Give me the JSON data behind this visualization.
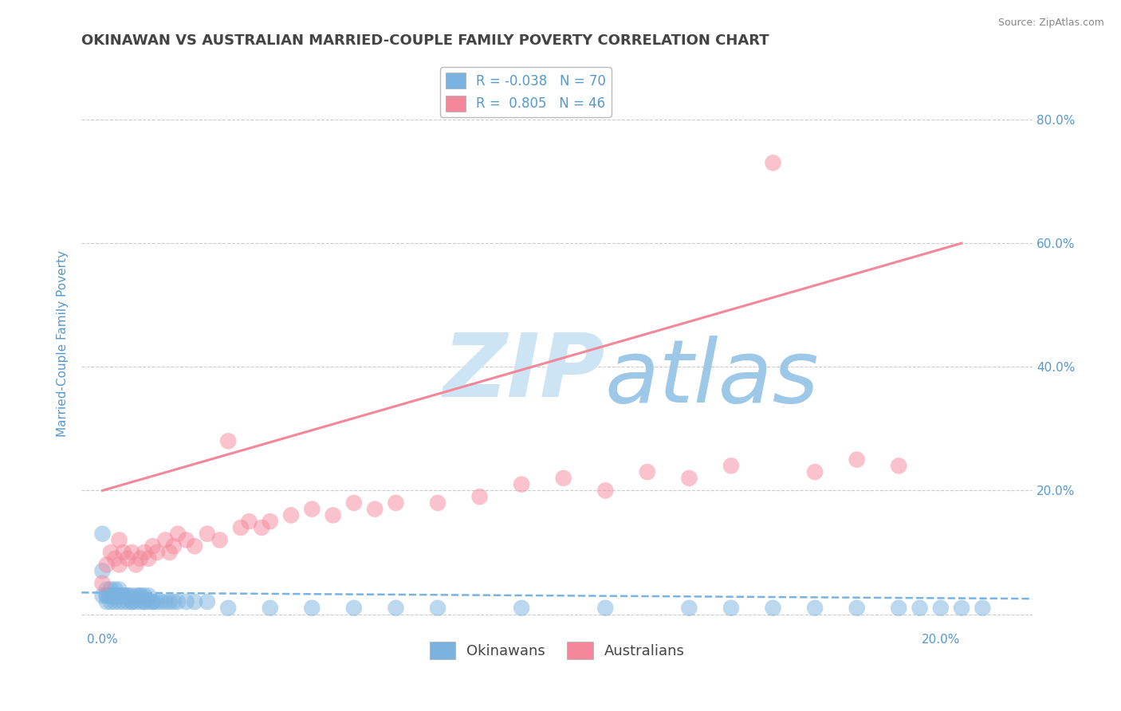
{
  "title": "OKINAWAN VS AUSTRALIAN MARRIED-COUPLE FAMILY POVERTY CORRELATION CHART",
  "source_text": "Source: ZipAtlas.com",
  "ylabel": "Married-Couple Family Poverty",
  "x_ticks": [
    0.0,
    0.05,
    0.1,
    0.15,
    0.2
  ],
  "x_tick_labels": [
    "0.0%",
    "",
    "",
    "",
    "20.0%"
  ],
  "y_ticks": [
    0.0,
    0.2,
    0.4,
    0.6,
    0.8
  ],
  "right_y_tick_labels": [
    "",
    "20.0%",
    "40.0%",
    "60.0%",
    "80.0%"
  ],
  "xlim": [
    -0.005,
    0.222
  ],
  "ylim": [
    -0.025,
    0.9
  ],
  "blue_color": "#7ab3e0",
  "pink_color": "#f4879a",
  "blue_line_color": "#7ab3e0",
  "pink_line_color": "#f4879a",
  "watermark_zip_color": "#cde4f5",
  "watermark_atlas_color": "#9dc8e8",
  "title_color": "#444444",
  "axis_label_color": "#5599cc",
  "tick_label_color": "#5599cc",
  "background_color": "#ffffff",
  "grid_color": "#cccccc",
  "blue_scatter_x": [
    0.0,
    0.0,
    0.0,
    0.001,
    0.001,
    0.001,
    0.001,
    0.002,
    0.002,
    0.002,
    0.002,
    0.002,
    0.003,
    0.003,
    0.003,
    0.003,
    0.004,
    0.004,
    0.004,
    0.004,
    0.004,
    0.005,
    0.005,
    0.005,
    0.005,
    0.006,
    0.006,
    0.006,
    0.007,
    0.007,
    0.007,
    0.008,
    0.008,
    0.009,
    0.009,
    0.009,
    0.01,
    0.01,
    0.01,
    0.011,
    0.011,
    0.012,
    0.012,
    0.013,
    0.014,
    0.015,
    0.016,
    0.017,
    0.018,
    0.02,
    0.022,
    0.025,
    0.03,
    0.04,
    0.05,
    0.06,
    0.07,
    0.08,
    0.1,
    0.12,
    0.14,
    0.16,
    0.18,
    0.2,
    0.21,
    0.205,
    0.19,
    0.195,
    0.17,
    0.15
  ],
  "blue_scatter_y": [
    0.13,
    0.07,
    0.03,
    0.04,
    0.03,
    0.02,
    0.03,
    0.03,
    0.04,
    0.02,
    0.03,
    0.03,
    0.03,
    0.04,
    0.03,
    0.02,
    0.03,
    0.04,
    0.02,
    0.03,
    0.03,
    0.03,
    0.03,
    0.02,
    0.03,
    0.03,
    0.02,
    0.03,
    0.02,
    0.03,
    0.02,
    0.03,
    0.02,
    0.03,
    0.02,
    0.03,
    0.02,
    0.03,
    0.02,
    0.02,
    0.03,
    0.02,
    0.02,
    0.02,
    0.02,
    0.02,
    0.02,
    0.02,
    0.02,
    0.02,
    0.02,
    0.02,
    0.01,
    0.01,
    0.01,
    0.01,
    0.01,
    0.01,
    0.01,
    0.01,
    0.01,
    0.01,
    0.01,
    0.01,
    0.01,
    0.01,
    0.01,
    0.01,
    0.01,
    0.01
  ],
  "pink_scatter_x": [
    0.0,
    0.001,
    0.002,
    0.003,
    0.004,
    0.004,
    0.005,
    0.006,
    0.007,
    0.008,
    0.009,
    0.01,
    0.011,
    0.012,
    0.013,
    0.015,
    0.016,
    0.017,
    0.018,
    0.02,
    0.022,
    0.025,
    0.028,
    0.03,
    0.033,
    0.035,
    0.038,
    0.04,
    0.045,
    0.05,
    0.055,
    0.06,
    0.065,
    0.07,
    0.08,
    0.09,
    0.1,
    0.11,
    0.12,
    0.13,
    0.14,
    0.15,
    0.16,
    0.17,
    0.18,
    0.19
  ],
  "pink_scatter_y": [
    0.05,
    0.08,
    0.1,
    0.09,
    0.08,
    0.12,
    0.1,
    0.09,
    0.1,
    0.08,
    0.09,
    0.1,
    0.09,
    0.11,
    0.1,
    0.12,
    0.1,
    0.11,
    0.13,
    0.12,
    0.11,
    0.13,
    0.12,
    0.28,
    0.14,
    0.15,
    0.14,
    0.15,
    0.16,
    0.17,
    0.16,
    0.18,
    0.17,
    0.18,
    0.18,
    0.19,
    0.21,
    0.22,
    0.2,
    0.23,
    0.22,
    0.24,
    0.73,
    0.23,
    0.25,
    0.24
  ],
  "blue_trend_x": [
    -0.005,
    0.222
  ],
  "blue_trend_y": [
    0.035,
    0.025
  ],
  "pink_trend_x": [
    0.0,
    0.205
  ],
  "pink_trend_y": [
    0.2,
    0.6
  ],
  "legend_label_blue": "R = -0.038   N = 70",
  "legend_label_pink": "R =  0.805   N = 46"
}
